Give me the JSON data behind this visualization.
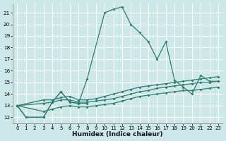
{
  "xlabel": "Humidex (Indice chaleur)",
  "xlim": [
    -0.5,
    23.5
  ],
  "ylim": [
    11.5,
    21.8
  ],
  "yticks": [
    12,
    13,
    14,
    15,
    16,
    17,
    18,
    19,
    20,
    21
  ],
  "xticks": [
    0,
    1,
    2,
    3,
    4,
    5,
    6,
    7,
    8,
    9,
    10,
    11,
    12,
    13,
    14,
    15,
    16,
    17,
    18,
    19,
    20,
    21,
    22,
    23
  ],
  "bg_color": "#cde8e8",
  "grid_color": "#ffffff",
  "line_color": "#2e7d6e",
  "line1_x": [
    0,
    1,
    3,
    4,
    5,
    6,
    7,
    8,
    10,
    11,
    12,
    13,
    14,
    15,
    16,
    17,
    18,
    19,
    20,
    21,
    22,
    23
  ],
  "line1_y": [
    13.0,
    12.0,
    12.0,
    13.3,
    14.2,
    13.3,
    13.2,
    15.3,
    21.0,
    21.3,
    21.5,
    20.0,
    19.3,
    18.5,
    17.0,
    18.5,
    15.2,
    14.6,
    14.0,
    15.6,
    15.1,
    15.1
  ],
  "line2_x": [
    0,
    1,
    3,
    4,
    5,
    6,
    7,
    8
  ],
  "line2_y": [
    13.0,
    12.0,
    12.0,
    13.3,
    14.2,
    13.3,
    13.2,
    13.2
  ],
  "line3_x": [
    0,
    3,
    4,
    5,
    6,
    7,
    8,
    9,
    10,
    11,
    12,
    13,
    14,
    15,
    16,
    17,
    18,
    19,
    20,
    21,
    22,
    23
  ],
  "line3_y": [
    13.0,
    13.5,
    13.5,
    13.7,
    13.8,
    13.5,
    13.5,
    13.6,
    13.8,
    14.0,
    14.2,
    14.4,
    14.6,
    14.7,
    14.8,
    14.9,
    15.0,
    15.1,
    15.2,
    15.3,
    15.4,
    15.5
  ],
  "line4_x": [
    0,
    3,
    4,
    5,
    6,
    7,
    8,
    9,
    10,
    11,
    12,
    13,
    14,
    15,
    16,
    17,
    18,
    19,
    20,
    21,
    22,
    23
  ],
  "line4_y": [
    13.0,
    13.2,
    13.3,
    13.5,
    13.5,
    13.3,
    13.3,
    13.4,
    13.5,
    13.6,
    13.8,
    14.0,
    14.2,
    14.3,
    14.5,
    14.6,
    14.7,
    14.8,
    14.9,
    15.0,
    15.0,
    15.1
  ],
  "line5_x": [
    0,
    3,
    4,
    5,
    6,
    7,
    8,
    9,
    10,
    11,
    12,
    13,
    14,
    15,
    16,
    17,
    18,
    19,
    20,
    21,
    22,
    23
  ],
  "line5_y": [
    13.0,
    12.5,
    12.7,
    12.9,
    13.0,
    12.9,
    12.9,
    13.0,
    13.1,
    13.2,
    13.4,
    13.6,
    13.8,
    13.9,
    14.0,
    14.1,
    14.2,
    14.3,
    14.3,
    14.4,
    14.5,
    14.6
  ]
}
